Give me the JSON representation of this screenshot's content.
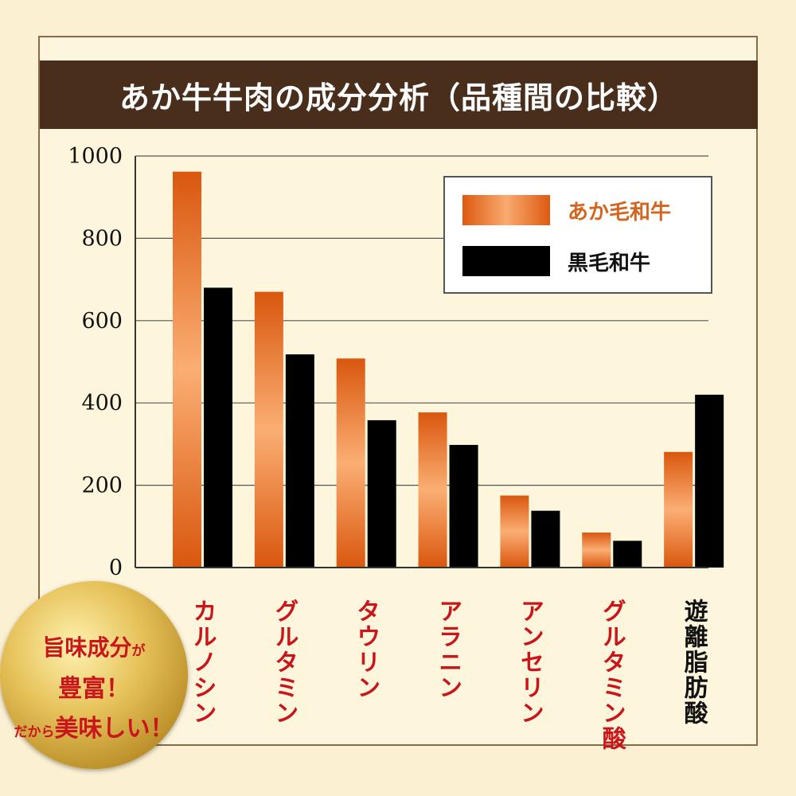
{
  "title": "あか牛牛肉の成分分析（品種間の比較）",
  "chart_data": {
    "type": "bar",
    "title": "あか牛牛肉の成分分析（品種間の比較）",
    "categories": [
      "カルノシン",
      "グルタミン",
      "タウリン",
      "アラニン",
      "アンセリン",
      "グルタミン酸",
      "遊離脂肪酸"
    ],
    "series": [
      {
        "name": "あか毛和牛",
        "values": [
          962,
          670,
          508,
          377,
          175,
          85,
          281
        ],
        "color": "#e0601a"
      },
      {
        "name": "黒毛和牛",
        "values": [
          680,
          518,
          358,
          298,
          138,
          65,
          420
        ],
        "color": "#000000"
      }
    ],
    "yticks": [
      0,
      200,
      400,
      600,
      800,
      1000
    ],
    "ylim": [
      0,
      1000
    ],
    "grid": true,
    "legend": "top-right",
    "category_colors": [
      "#c8161a",
      "#c8161a",
      "#c8161a",
      "#c8161a",
      "#c8161a",
      "#c8161a",
      "#111111"
    ]
  },
  "badge": {
    "line1_main": "旨味成分",
    "line1_small": "が",
    "line2": "豊富！",
    "line3_small": "だから",
    "line3_main": "美味しい！"
  }
}
